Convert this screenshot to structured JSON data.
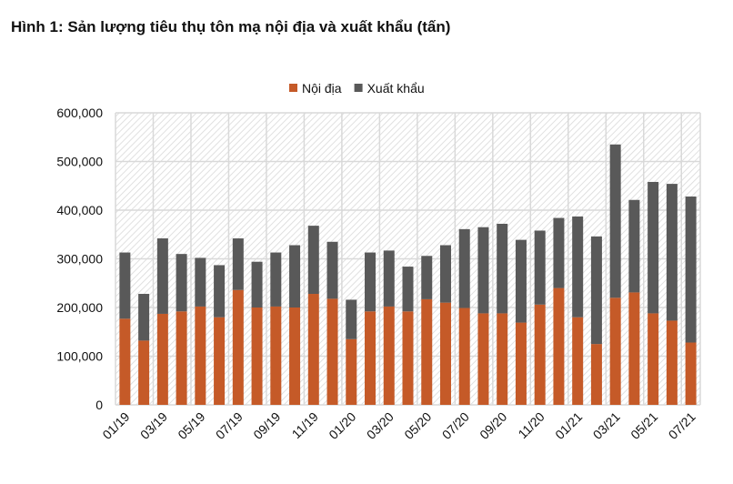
{
  "chart_data": {
    "type": "bar",
    "stacked": true,
    "title": "Hình 1: Sản lượng tiêu thụ tôn mạ nội địa và xuất khẩu (tấn)",
    "xlabel": "",
    "ylabel": "",
    "ylim": [
      0,
      600000
    ],
    "yticks": [
      "0",
      "100,000",
      "200,000",
      "300,000",
      "400,000",
      "500,000",
      "600,000"
    ],
    "legend_position": "top-center",
    "grid": true,
    "categories": [
      "01/19",
      "02/19",
      "03/19",
      "04/19",
      "05/19",
      "06/19",
      "07/19",
      "08/19",
      "09/19",
      "10/19",
      "11/19",
      "12/19",
      "01/20",
      "02/20",
      "03/20",
      "04/20",
      "05/20",
      "06/20",
      "07/20",
      "08/20",
      "09/20",
      "10/20",
      "11/20",
      "12/20",
      "01/21",
      "02/21",
      "03/21",
      "04/21",
      "05/21",
      "06/21",
      "07/21"
    ],
    "xtick_labels": [
      "01/19",
      "03/19",
      "05/19",
      "07/19",
      "09/19",
      "11/19",
      "01/20",
      "03/20",
      "05/20",
      "07/20",
      "09/20",
      "11/20",
      "01/21",
      "03/21",
      "05/21",
      "07/21"
    ],
    "series": [
      {
        "name": "Nội địa",
        "color": "#c55a28",
        "values": [
          177000,
          132000,
          187000,
          192000,
          202000,
          180000,
          236000,
          200000,
          202000,
          200000,
          228000,
          218000,
          135000,
          192000,
          202000,
          192000,
          217000,
          210000,
          199000,
          188000,
          188000,
          169000,
          206000,
          240000,
          180000,
          125000,
          220000,
          231000,
          188000,
          173000,
          128000
        ]
      },
      {
        "name": "Xuất khẩu",
        "color": "#595959",
        "values": [
          136000,
          96000,
          155000,
          118000,
          100000,
          107000,
          106000,
          94000,
          111000,
          128000,
          140000,
          117000,
          81000,
          121000,
          115000,
          92000,
          89000,
          118000,
          162000,
          177000,
          184000,
          170000,
          152000,
          144000,
          207000,
          221000,
          315000,
          190000,
          270000,
          281000,
          300000
        ]
      }
    ]
  }
}
